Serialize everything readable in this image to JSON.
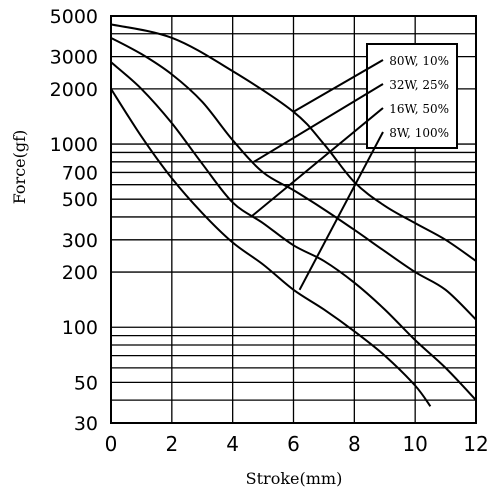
{
  "chart_data": {
    "type": "line",
    "xlabel": "Stroke(mm)",
    "ylabel": "Force(gf)",
    "xlim": [
      0,
      12
    ],
    "ylim": [
      30,
      5000
    ],
    "y_scale": "log",
    "grid": true,
    "x_ticks": [
      0,
      2,
      4,
      6,
      8,
      10,
      12
    ],
    "x_tick_labels": [
      "0",
      "2",
      "4",
      "6",
      "8",
      "10",
      "12"
    ],
    "y_ticks": [
      30,
      50,
      100,
      200,
      300,
      500,
      700,
      1000,
      2000,
      3000,
      5000
    ],
    "y_tick_labels": [
      "30",
      "50",
      "100",
      "200",
      "300",
      "500",
      "700",
      "1000",
      "2000",
      "3000",
      "5000"
    ],
    "legend_position": "top-right",
    "series": [
      {
        "name": "80W, 10%",
        "x": [
          0,
          2,
          4,
          6,
          7,
          8,
          9,
          10,
          11,
          12
        ],
        "y": [
          4500,
          3800,
          2500,
          1500,
          1000,
          620,
          460,
          370,
          300,
          230
        ]
      },
      {
        "name": "32W, 25%",
        "x": [
          0,
          1,
          2,
          3,
          4,
          5,
          6,
          7,
          8,
          9,
          10,
          11,
          12
        ],
        "y": [
          3800,
          3100,
          2400,
          1700,
          1050,
          700,
          560,
          440,
          340,
          260,
          200,
          160,
          110
        ]
      },
      {
        "name": "16W, 50%",
        "x": [
          0,
          1,
          2,
          3,
          4,
          5,
          6,
          7,
          8,
          9,
          10,
          11,
          12
        ],
        "y": [
          2800,
          2000,
          1300,
          780,
          480,
          370,
          280,
          230,
          175,
          125,
          85,
          60,
          40
        ]
      },
      {
        "name": "8W, 100%",
        "x": [
          0,
          1,
          2,
          3,
          4,
          5,
          6,
          7,
          8,
          9,
          10,
          10.5
        ],
        "y": [
          2000,
          1100,
          650,
          420,
          290,
          220,
          160,
          125,
          95,
          70,
          48,
          37
        ]
      }
    ]
  }
}
